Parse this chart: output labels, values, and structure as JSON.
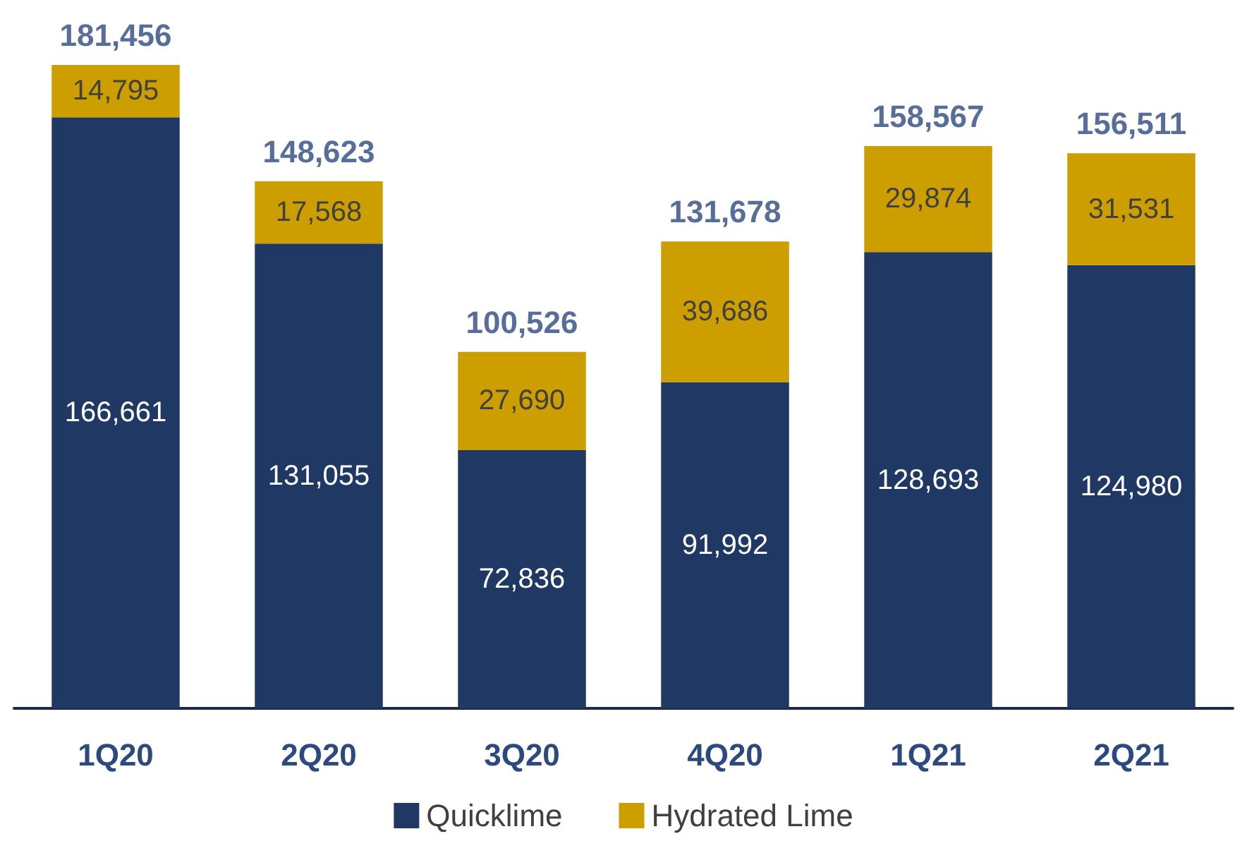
{
  "chart_data": {
    "type": "bar",
    "stacked": true,
    "legend": "bottom",
    "categories": [
      "1Q20",
      "2Q20",
      "3Q20",
      "4Q20",
      "1Q21",
      "2Q21"
    ],
    "series": [
      {
        "name": "Quicklime",
        "color": "#203864",
        "values": [
          166661,
          131055,
          72836,
          91992,
          128693,
          124980
        ],
        "value_labels": [
          "166,661",
          "131,055",
          "72,836",
          "91,992",
          "128,693",
          "124,980"
        ]
      },
      {
        "name": "Hydrated Lime",
        "color": "#cc9e00",
        "values": [
          14795,
          17568,
          27690,
          39686,
          29874,
          31531
        ],
        "value_labels": [
          "14,795",
          "17,568",
          "27,690",
          "39,686",
          "29,874",
          "31,531"
        ]
      }
    ],
    "totals": [
      "181,456",
      "148,623",
      "100,526",
      "131,678",
      "158,567",
      "156,511"
    ]
  }
}
